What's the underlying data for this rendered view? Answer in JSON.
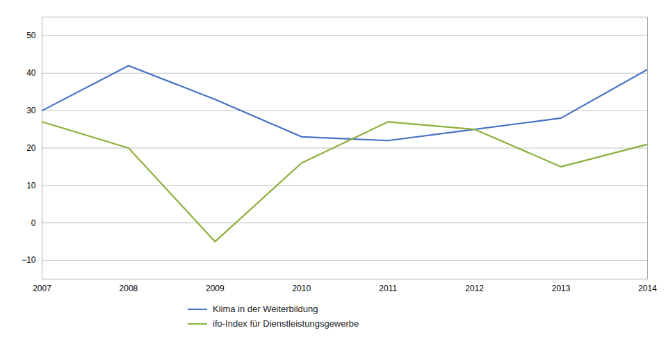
{
  "chart_data": {
    "type": "line",
    "x": [
      2007,
      2008,
      2009,
      2010,
      2011,
      2012,
      2013,
      2014
    ],
    "series": [
      {
        "name": "Klima in der Weiterbildung",
        "color": "#4472C4",
        "values": [
          30,
          42,
          33,
          23,
          22,
          25,
          28,
          41
        ]
      },
      {
        "name": "ifo-Index für Dienstleistungsgewerbe",
        "color": "#8DB03D",
        "values": [
          27,
          20,
          -5,
          16,
          27,
          25,
          15,
          21
        ]
      }
    ],
    "xlim": [
      2007,
      2014
    ],
    "xticks": [
      2007,
      2008,
      2009,
      2010,
      2011,
      2012,
      2013,
      2014
    ],
    "ylim": [
      -15,
      55
    ],
    "yticks": [
      -10,
      0,
      10,
      20,
      30,
      40,
      50
    ],
    "grid": true,
    "legend": "bottom"
  }
}
